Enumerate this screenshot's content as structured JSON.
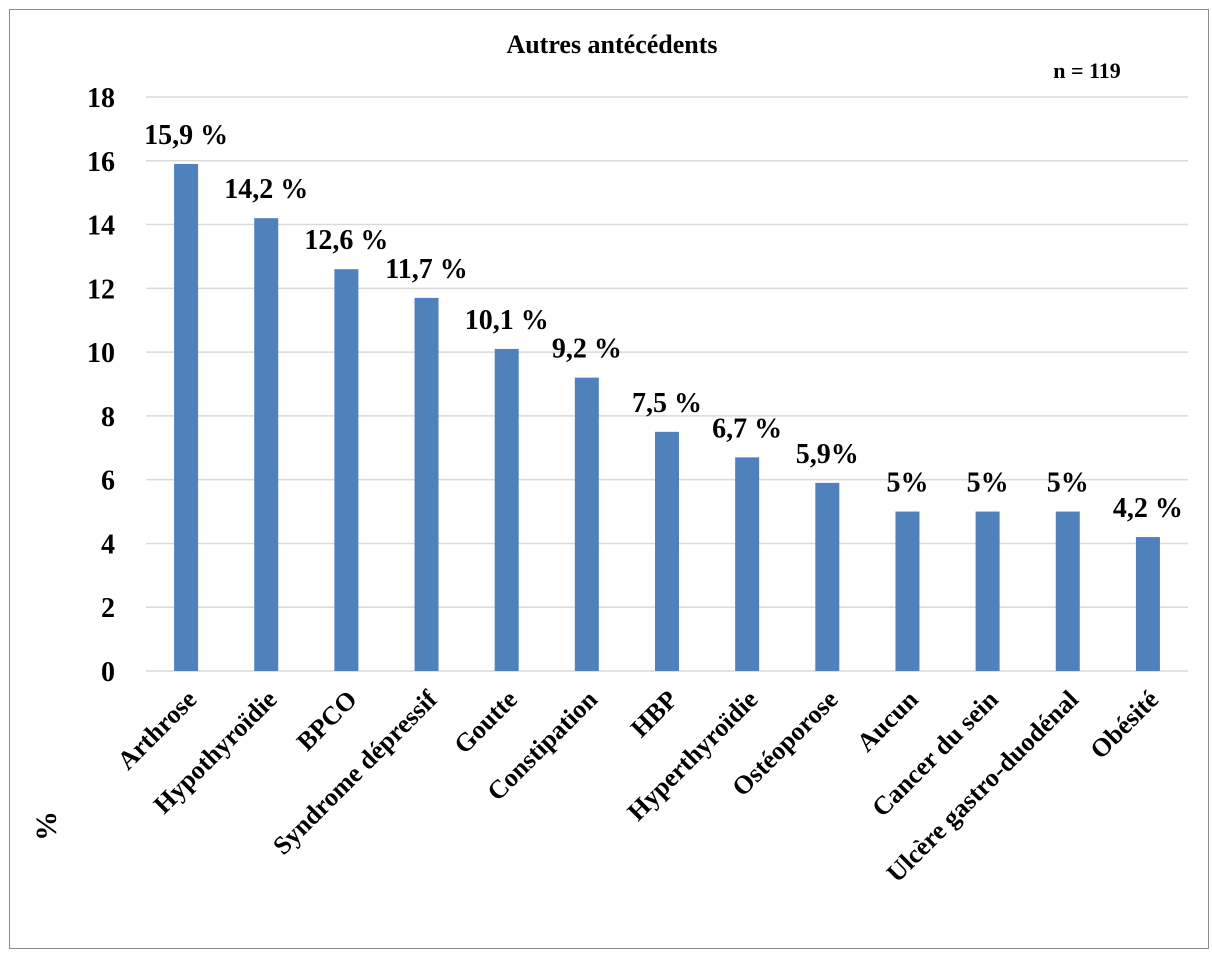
{
  "chart_data": {
    "type": "bar",
    "title": "Autres antécédents",
    "annotation": "n = 119",
    "ylabel": "%",
    "xlabel": "",
    "ylim": [
      0,
      18
    ],
    "yticks": [
      0,
      2,
      4,
      6,
      8,
      10,
      12,
      14,
      16,
      18
    ],
    "grid": true,
    "bar_color": "#4f81bd",
    "categories": [
      "Arthrose",
      "Hypothyroïdie",
      "BPCO",
      "Syndrome dépressif",
      "Goutte",
      "Constipation",
      "HBP",
      "Hyperthyroïdie",
      "Ostéoporose",
      "Aucun",
      "Cancer du sein",
      "Ulcère gastro-duodénal",
      "Obésité"
    ],
    "values": [
      15.9,
      14.2,
      12.6,
      11.7,
      10.1,
      9.2,
      7.5,
      6.7,
      5.9,
      5,
      5,
      5,
      4.2
    ],
    "data_labels": [
      "15,9 %",
      "14,2 %",
      "12,6 %",
      "11,7 %",
      "10,1 %",
      "9,2 %",
      "7,5 %",
      "6,7 %",
      "5,9%",
      "5%",
      "5%",
      "5%",
      "4,2 %"
    ]
  }
}
